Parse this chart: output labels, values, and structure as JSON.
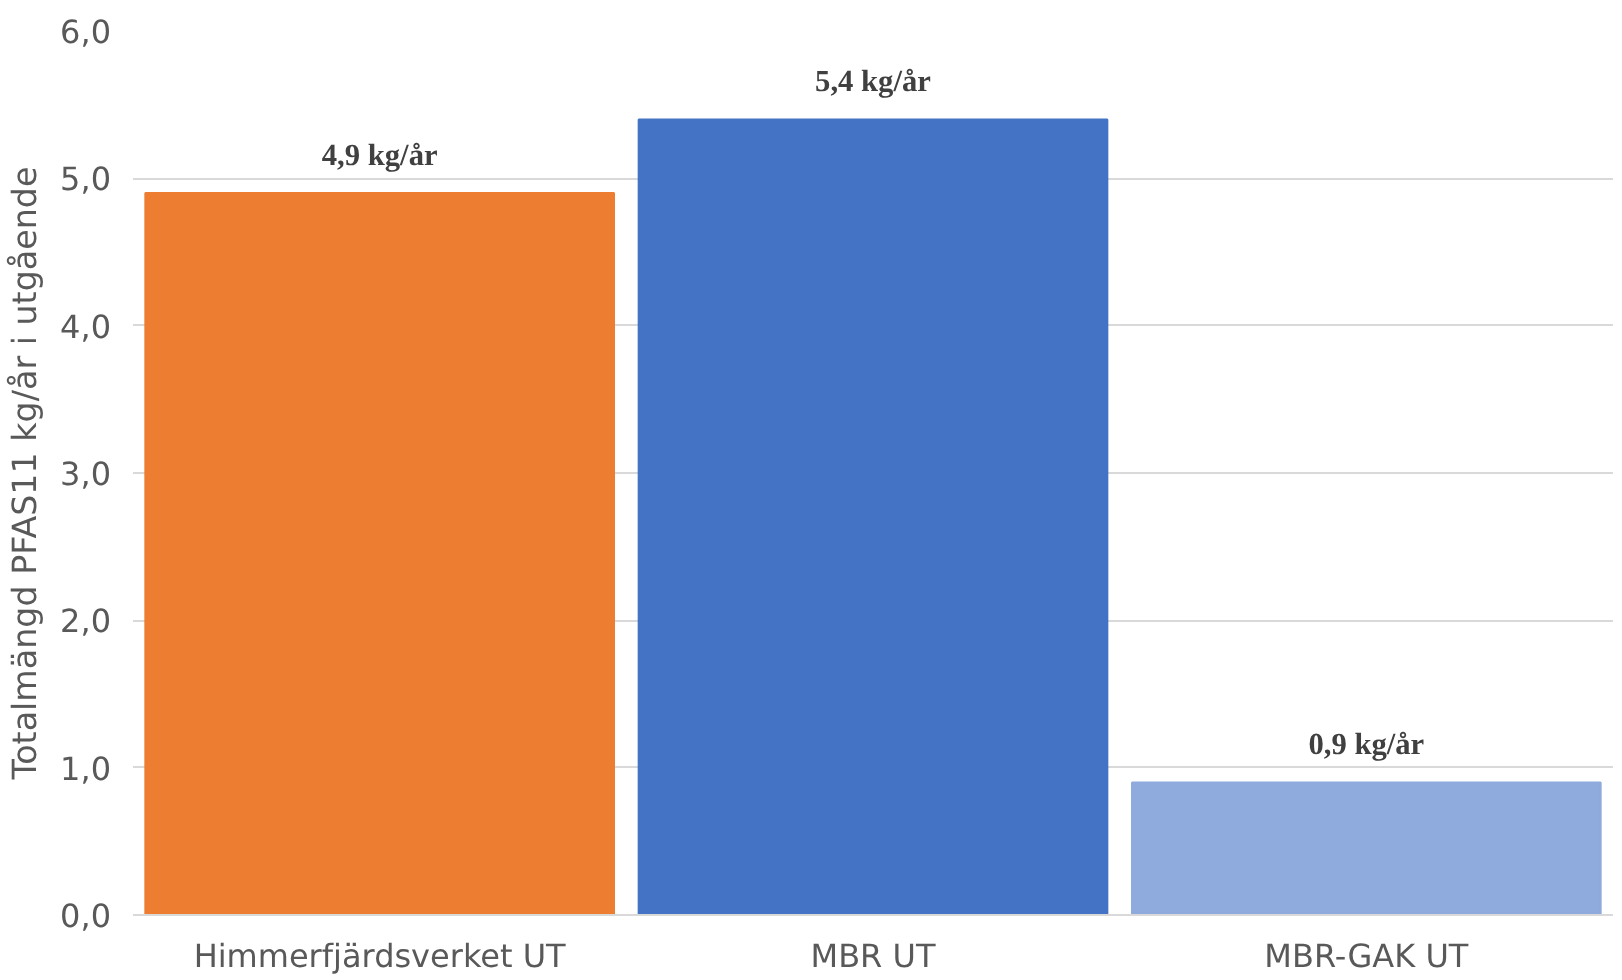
{
  "chart_data": {
    "type": "bar",
    "ylabel": "Totalmängd PFAS11 kg/år i utgående",
    "categories": [
      "Himmerfjärdsverket UT",
      "MBR UT",
      "MBR-GAK UT"
    ],
    "values": [
      4.9,
      5.4,
      0.9
    ],
    "colors": [
      "#ed7d31",
      "#4472c4",
      "#8faadc"
    ],
    "value_labels": [
      "4,9 kg/år",
      "5,4 kg/år",
      "0,9 kg/år"
    ],
    "ylim": [
      0,
      6
    ],
    "yticks": [
      {
        "value": 0,
        "label": "0,0"
      },
      {
        "value": 1,
        "label": "1,0"
      },
      {
        "value": 2,
        "label": "2,0"
      },
      {
        "value": 3,
        "label": "3,0"
      },
      {
        "value": 4,
        "label": "4,0"
      },
      {
        "value": 5,
        "label": "5,0"
      },
      {
        "value": 6,
        "label": "6,0"
      }
    ],
    "grid": "y"
  }
}
